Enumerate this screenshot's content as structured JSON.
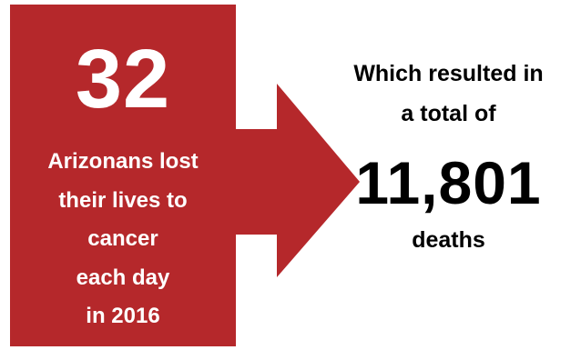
{
  "colors": {
    "accent": "#B5282B",
    "text_on_accent": "#FFFFFF",
    "text": "#000000"
  },
  "left_panel": {
    "number": "32",
    "lines": [
      "Arizonans lost",
      "their lives to",
      "cancer",
      "each day",
      "in 2016"
    ]
  },
  "right_panel": {
    "lines_top": [
      "Which resulted in",
      "a total of"
    ],
    "number": "11,801",
    "line_bottom": "deaths"
  }
}
